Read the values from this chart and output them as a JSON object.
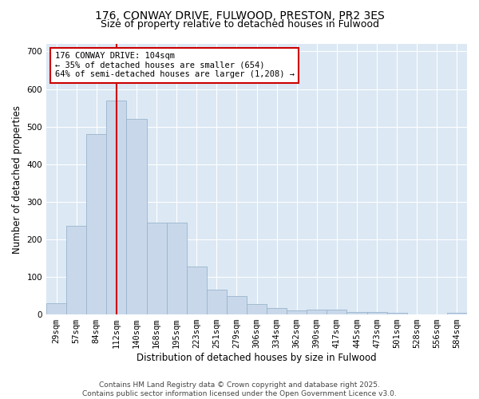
{
  "title_line1": "176, CONWAY DRIVE, FULWOOD, PRESTON, PR2 3ES",
  "title_line2": "Size of property relative to detached houses in Fulwood",
  "xlabel": "Distribution of detached houses by size in Fulwood",
  "ylabel": "Number of detached properties",
  "bar_color": "#c8d8ea",
  "bar_edge_color": "#9ab4cc",
  "background_color": "#dce8f4",
  "categories": [
    "29sqm",
    "57sqm",
    "84sqm",
    "112sqm",
    "140sqm",
    "168sqm",
    "195sqm",
    "223sqm",
    "251sqm",
    "279sqm",
    "306sqm",
    "334sqm",
    "362sqm",
    "390sqm",
    "417sqm",
    "445sqm",
    "473sqm",
    "501sqm",
    "528sqm",
    "556sqm",
    "584sqm"
  ],
  "values": [
    30,
    235,
    480,
    570,
    520,
    245,
    245,
    128,
    65,
    50,
    28,
    18,
    10,
    12,
    13,
    7,
    7,
    5,
    0,
    0,
    5
  ],
  "ylim": [
    0,
    720
  ],
  "yticks": [
    0,
    100,
    200,
    300,
    400,
    500,
    600,
    700
  ],
  "red_line_x": 3.0,
  "annotation_text": "176 CONWAY DRIVE: 104sqm\n← 35% of detached houses are smaller (654)\n64% of semi-detached houses are larger (1,208) →",
  "annotation_box_color": "#ffffff",
  "annotation_box_edge": "#cc0000",
  "red_line_color": "#cc0000",
  "footer_text": "Contains HM Land Registry data © Crown copyright and database right 2025.\nContains public sector information licensed under the Open Government Licence v3.0.",
  "title_fontsize": 10,
  "subtitle_fontsize": 9,
  "axis_label_fontsize": 8.5,
  "tick_fontsize": 7.5,
  "annotation_fontsize": 7.5
}
